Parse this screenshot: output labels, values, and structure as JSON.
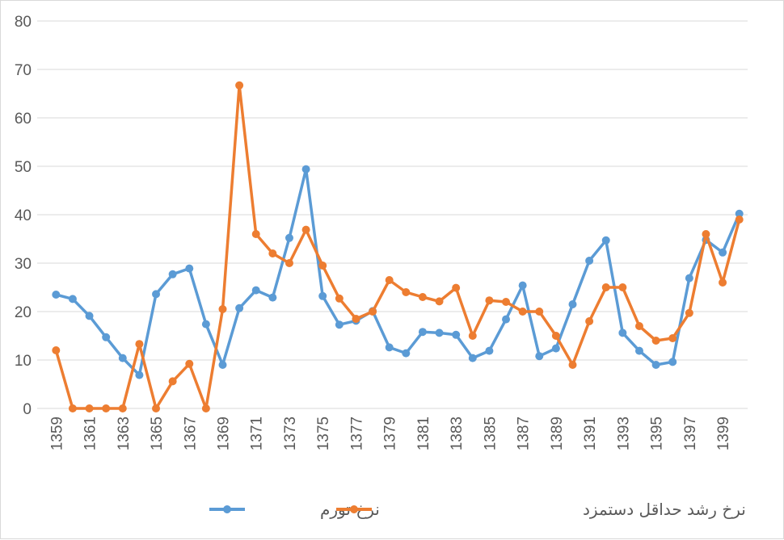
{
  "chart_data": {
    "type": "line",
    "title": "",
    "xlabel": "",
    "ylabel": "",
    "ylim": [
      0,
      80
    ],
    "yticks": [
      0,
      10,
      20,
      30,
      40,
      50,
      60,
      70,
      80
    ],
    "grid": true,
    "legend_position": "bottom",
    "x": [
      1359,
      1360,
      1361,
      1362,
      1363,
      1364,
      1365,
      1366,
      1367,
      1368,
      1369,
      1370,
      1371,
      1372,
      1373,
      1374,
      1375,
      1376,
      1377,
      1378,
      1379,
      1380,
      1381,
      1382,
      1383,
      1384,
      1385,
      1386,
      1387,
      1388,
      1389,
      1390,
      1391,
      1392,
      1393,
      1394,
      1395,
      1396,
      1397,
      1398,
      1399,
      1400
    ],
    "xtick_labels": [
      "1359",
      "1361",
      "1363",
      "1365",
      "1367",
      "1369",
      "1371",
      "1373",
      "1375",
      "1377",
      "1379",
      "1381",
      "1383",
      "1385",
      "1387",
      "1389",
      "1391",
      "1393",
      "1395",
      "1397",
      "1399"
    ],
    "series": [
      {
        "name": "نرخ تورم",
        "color": "#5b9bd5",
        "values": [
          23.5,
          22.6,
          19.1,
          14.7,
          10.4,
          6.9,
          23.6,
          27.7,
          28.9,
          17.4,
          9.0,
          20.7,
          24.4,
          22.9,
          35.2,
          49.4,
          23.2,
          17.3,
          18.1,
          20.1,
          12.6,
          11.4,
          15.8,
          15.6,
          15.2,
          10.4,
          11.9,
          18.4,
          25.4,
          10.8,
          12.4,
          21.5,
          30.5,
          34.7,
          15.6,
          11.9,
          9.0,
          9.6,
          26.9,
          34.8,
          32.2,
          40.2
        ]
      },
      {
        "name": "نرخ رشد حداقل دستمزد",
        "color": "#ed7d31",
        "values": [
          12,
          0,
          0,
          0,
          0,
          13.3,
          0,
          5.6,
          9.2,
          0,
          20.5,
          66.7,
          36,
          32,
          30,
          36.9,
          29.5,
          22.7,
          18.5,
          20,
          26.5,
          24,
          23,
          22.1,
          24.9,
          15,
          22.3,
          22,
          20,
          20,
          15,
          9,
          18,
          25,
          25,
          17,
          14,
          14.5,
          19.7,
          36,
          26,
          39
        ]
      }
    ]
  }
}
